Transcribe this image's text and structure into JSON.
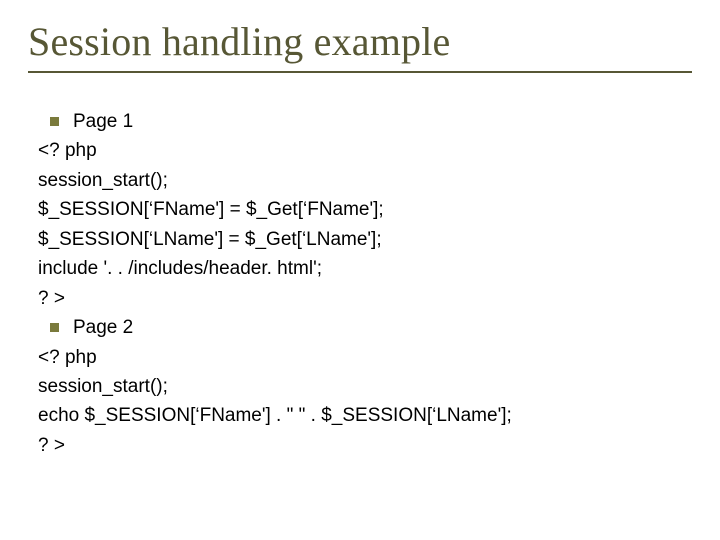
{
  "title": "Session handling example",
  "colors": {
    "title_color": "#575735",
    "rule_color": "#575735",
    "bullet_color": "#7a7a3c",
    "text_color": "#000000",
    "background": "#ffffff"
  },
  "typography": {
    "title_font": "Times New Roman",
    "title_size_pt": 30,
    "body_font": "Arial",
    "body_size_pt": 14
  },
  "lines": [
    {
      "bullet": true,
      "text": "Page 1"
    },
    {
      "bullet": false,
      "text": "<? php"
    },
    {
      "bullet": false,
      "text": "session_start();"
    },
    {
      "bullet": false,
      "text": "$_SESSION[‘FName'] = $_Get[‘FName'];"
    },
    {
      "bullet": false,
      "text": "$_SESSION[‘LName'] = $_Get[‘LName'];"
    },
    {
      "bullet": false,
      "text": "include '. . /includes/header. html';"
    },
    {
      "bullet": false,
      "text": "? >"
    },
    {
      "bullet": true,
      "text": "Page 2"
    },
    {
      "bullet": false,
      "text": "<? php"
    },
    {
      "bullet": false,
      "text": "session_start();"
    },
    {
      "bullet": false,
      "text": "echo $_SESSION[‘FName'] . \" \" . $_SESSION[‘LName'];"
    },
    {
      "bullet": false,
      "text": "? >"
    }
  ]
}
